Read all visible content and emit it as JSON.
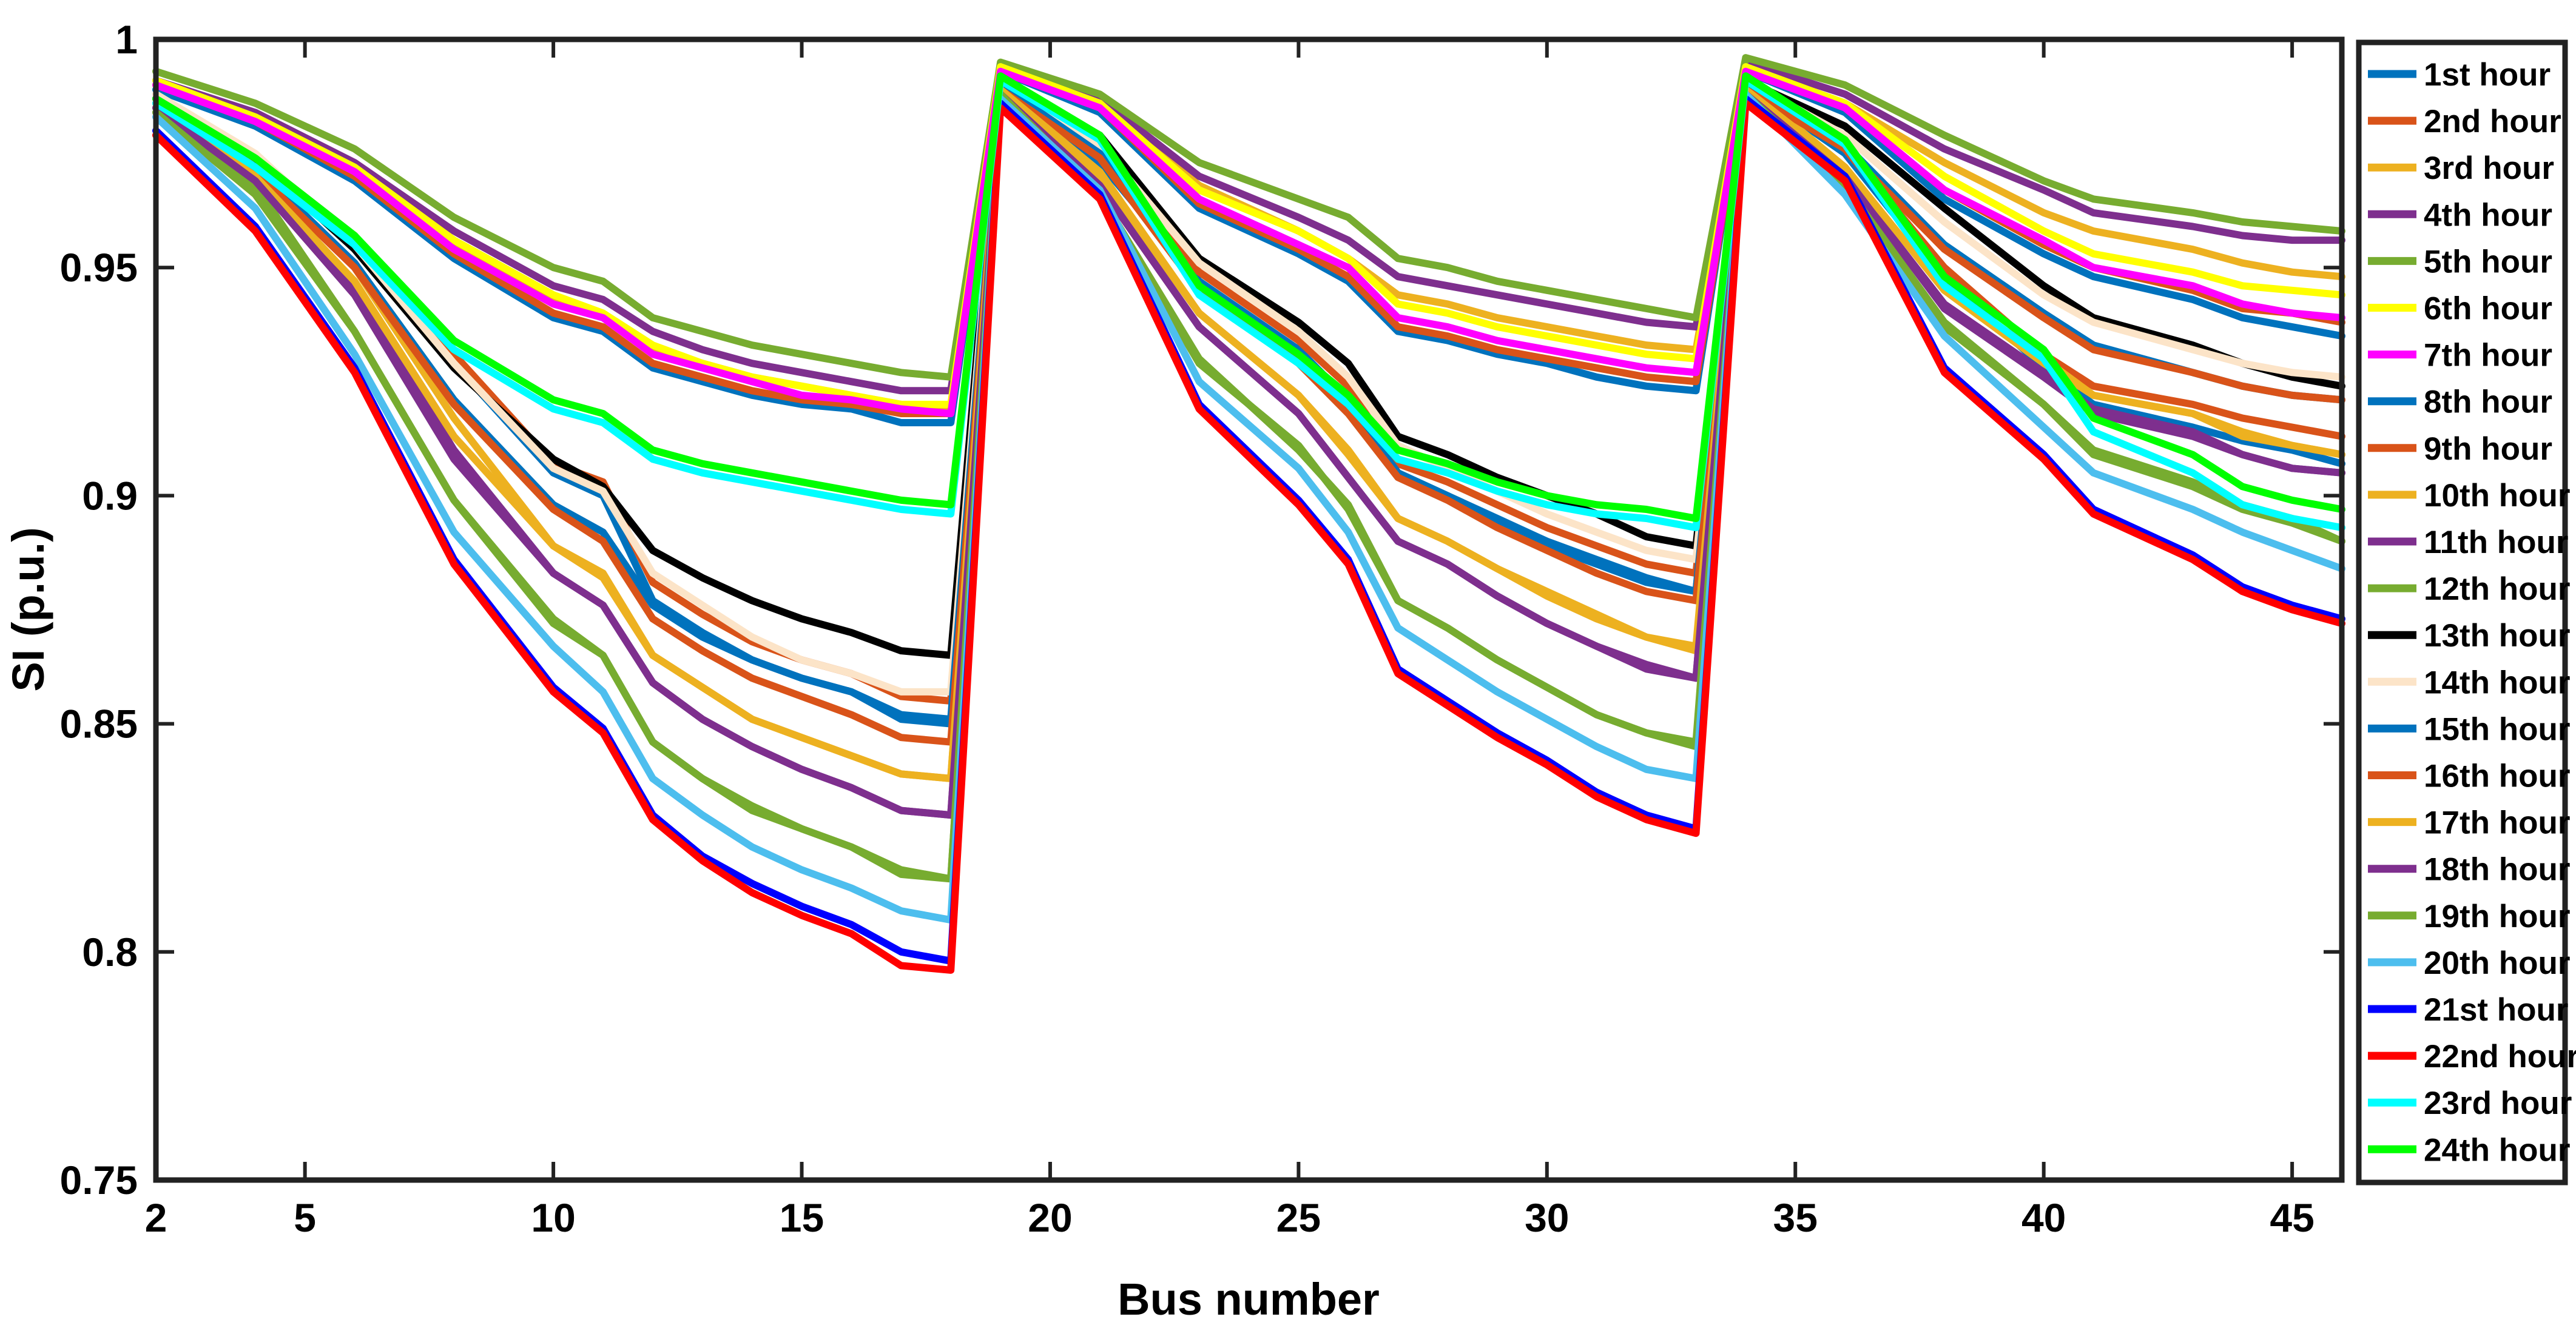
{
  "chart_data": {
    "type": "line",
    "title": "",
    "xlabel": "Bus number",
    "ylabel": "SI (p.u.)",
    "xlim": [
      2,
      46
    ],
    "ylim": [
      0.75,
      1.0
    ],
    "xticks": [
      2,
      5,
      10,
      15,
      20,
      25,
      30,
      35,
      40,
      45
    ],
    "xtick_labels": [
      "2",
      "5",
      "10",
      "15",
      "20",
      "25",
      "30",
      "35",
      "40",
      "45"
    ],
    "yticks": [
      0.75,
      0.8,
      0.85,
      0.9,
      0.95,
      1.0
    ],
    "ytick_labels": [
      "0.75",
      "0.8",
      "0.85",
      "0.9",
      "0.95",
      "1"
    ],
    "grid": false,
    "legend_position": "right",
    "x": [
      2,
      4,
      6,
      8,
      10,
      11,
      12,
      13,
      14,
      15,
      16,
      17,
      18,
      19,
      21,
      23,
      25,
      26,
      27,
      28,
      29,
      30,
      31,
      32,
      33,
      34,
      36,
      38,
      40,
      41,
      43,
      44,
      45,
      46
    ],
    "series": [
      {
        "name": "1st hour",
        "color": "#0072BD",
        "values": [
          0.989,
          0.981,
          0.969,
          0.952,
          0.939,
          0.936,
          0.928,
          0.925,
          0.922,
          0.92,
          0.919,
          0.916,
          0.916,
          0.993,
          0.984,
          0.963,
          0.953,
          0.947,
          0.936,
          0.934,
          0.931,
          0.929,
          0.926,
          0.924,
          0.923,
          0.993,
          0.984,
          0.965,
          0.953,
          0.948,
          0.943,
          0.939,
          0.937,
          0.935
        ]
      },
      {
        "name": "2nd hour",
        "color": "#D95319",
        "values": [
          0.99,
          0.982,
          0.97,
          0.953,
          0.94,
          0.937,
          0.929,
          0.926,
          0.923,
          0.921,
          0.92,
          0.918,
          0.918,
          0.993,
          0.985,
          0.964,
          0.954,
          0.948,
          0.937,
          0.935,
          0.932,
          0.93,
          0.928,
          0.926,
          0.925,
          0.993,
          0.985,
          0.967,
          0.955,
          0.95,
          0.945,
          0.941,
          0.94,
          0.938
        ]
      },
      {
        "name": "3rd hour",
        "color": "#EDB120",
        "values": [
          0.99,
          0.983,
          0.971,
          0.955,
          0.943,
          0.939,
          0.932,
          0.929,
          0.926,
          0.924,
          0.922,
          0.92,
          0.919,
          0.994,
          0.986,
          0.968,
          0.958,
          0.952,
          0.944,
          0.942,
          0.939,
          0.937,
          0.935,
          0.933,
          0.932,
          0.994,
          0.986,
          0.973,
          0.962,
          0.958,
          0.954,
          0.951,
          0.949,
          0.948
        ]
      },
      {
        "name": "4th hour",
        "color": "#7E2F8E",
        "values": [
          0.991,
          0.984,
          0.973,
          0.958,
          0.946,
          0.943,
          0.936,
          0.932,
          0.929,
          0.927,
          0.925,
          0.923,
          0.923,
          0.994,
          0.987,
          0.97,
          0.961,
          0.956,
          0.948,
          0.946,
          0.944,
          0.942,
          0.94,
          0.938,
          0.937,
          0.995,
          0.988,
          0.976,
          0.967,
          0.962,
          0.959,
          0.957,
          0.956,
          0.956
        ]
      },
      {
        "name": "5th hour",
        "color": "#77AC30",
        "values": [
          0.993,
          0.986,
          0.976,
          0.961,
          0.95,
          0.947,
          0.939,
          0.936,
          0.933,
          0.931,
          0.929,
          0.927,
          0.926,
          0.995,
          0.988,
          0.973,
          0.965,
          0.961,
          0.952,
          0.95,
          0.947,
          0.945,
          0.943,
          0.941,
          0.939,
          0.996,
          0.99,
          0.979,
          0.969,
          0.965,
          0.962,
          0.96,
          0.959,
          0.958
        ]
      },
      {
        "name": "6th hour",
        "color": "#FFFF00",
        "values": [
          0.991,
          0.983,
          0.972,
          0.956,
          0.944,
          0.94,
          0.933,
          0.929,
          0.926,
          0.924,
          0.922,
          0.92,
          0.92,
          0.994,
          0.986,
          0.967,
          0.958,
          0.952,
          0.942,
          0.94,
          0.937,
          0.935,
          0.933,
          0.931,
          0.93,
          0.994,
          0.986,
          0.97,
          0.958,
          0.953,
          0.949,
          0.946,
          0.945,
          0.944
        ]
      },
      {
        "name": "7th hour",
        "color": "#FF00FF",
        "values": [
          0.99,
          0.982,
          0.971,
          0.954,
          0.942,
          0.939,
          0.931,
          0.928,
          0.925,
          0.922,
          0.921,
          0.919,
          0.918,
          0.993,
          0.985,
          0.965,
          0.955,
          0.95,
          0.939,
          0.937,
          0.934,
          0.932,
          0.93,
          0.928,
          0.927,
          0.993,
          0.985,
          0.967,
          0.956,
          0.95,
          0.946,
          0.942,
          0.94,
          0.939
        ]
      },
      {
        "name": "8th hour",
        "color": "#0072BD",
        "values": [
          0.987,
          0.973,
          0.956,
          0.929,
          0.905,
          0.9,
          0.877,
          0.87,
          0.864,
          0.86,
          0.857,
          0.851,
          0.85,
          0.99,
          0.973,
          0.947,
          0.932,
          0.921,
          0.905,
          0.9,
          0.895,
          0.89,
          0.886,
          0.882,
          0.879,
          0.99,
          0.975,
          0.948,
          0.928,
          0.92,
          0.915,
          0.912,
          0.91,
          0.907
        ]
      },
      {
        "name": "9th hour",
        "color": "#D95319",
        "values": [
          0.987,
          0.974,
          0.957,
          0.931,
          0.907,
          0.903,
          0.881,
          0.874,
          0.868,
          0.864,
          0.861,
          0.856,
          0.855,
          0.99,
          0.974,
          0.949,
          0.934,
          0.924,
          0.907,
          0.903,
          0.898,
          0.893,
          0.889,
          0.885,
          0.883,
          0.99,
          0.976,
          0.95,
          0.931,
          0.924,
          0.92,
          0.917,
          0.915,
          0.913
        ]
      },
      {
        "name": "10th hour",
        "color": "#EDB120",
        "values": [
          0.987,
          0.972,
          0.95,
          0.917,
          0.889,
          0.882,
          0.865,
          0.858,
          0.851,
          0.847,
          0.843,
          0.839,
          0.838,
          0.989,
          0.97,
          0.94,
          0.922,
          0.909,
          0.895,
          0.89,
          0.884,
          0.878,
          0.873,
          0.869,
          0.866,
          0.99,
          0.972,
          0.945,
          0.93,
          0.922,
          0.918,
          0.913,
          0.911,
          0.909
        ]
      },
      {
        "name": "11th hour",
        "color": "#7E2F8E",
        "values": [
          0.985,
          0.97,
          0.946,
          0.91,
          0.883,
          0.876,
          0.859,
          0.851,
          0.845,
          0.84,
          0.836,
          0.831,
          0.83,
          0.988,
          0.968,
          0.937,
          0.918,
          0.904,
          0.89,
          0.885,
          0.878,
          0.872,
          0.867,
          0.862,
          0.86,
          0.989,
          0.97,
          0.942,
          0.927,
          0.919,
          0.914,
          0.909,
          0.906,
          0.905
        ]
      },
      {
        "name": "12th hour",
        "color": "#77AC30",
        "values": [
          0.984,
          0.968,
          0.936,
          0.899,
          0.872,
          0.865,
          0.846,
          0.838,
          0.831,
          0.827,
          0.823,
          0.817,
          0.816,
          0.988,
          0.966,
          0.929,
          0.911,
          0.897,
          0.877,
          0.871,
          0.864,
          0.858,
          0.852,
          0.848,
          0.845,
          0.989,
          0.968,
          0.937,
          0.92,
          0.909,
          0.902,
          0.897,
          0.894,
          0.89
        ]
      },
      {
        "name": "13th hour",
        "color": "#000000",
        "values": [
          0.987,
          0.974,
          0.954,
          0.928,
          0.908,
          0.902,
          0.888,
          0.882,
          0.877,
          0.873,
          0.87,
          0.866,
          0.865,
          0.991,
          0.979,
          0.952,
          0.938,
          0.929,
          0.913,
          0.909,
          0.904,
          0.9,
          0.896,
          0.891,
          0.889,
          0.991,
          0.981,
          0.963,
          0.946,
          0.939,
          0.933,
          0.929,
          0.926,
          0.924
        ]
      },
      {
        "name": "14th hour",
        "color": "#FCE4C8",
        "values": [
          0.988,
          0.975,
          0.955,
          0.929,
          0.906,
          0.901,
          0.883,
          0.876,
          0.869,
          0.864,
          0.861,
          0.857,
          0.857,
          0.991,
          0.977,
          0.951,
          0.936,
          0.926,
          0.911,
          0.906,
          0.901,
          0.896,
          0.892,
          0.888,
          0.886,
          0.991,
          0.979,
          0.96,
          0.944,
          0.938,
          0.932,
          0.929,
          0.927,
          0.926
        ]
      },
      {
        "name": "15th hour",
        "color": "#0072BD",
        "values": [
          0.986,
          0.972,
          0.951,
          0.921,
          0.898,
          0.892,
          0.876,
          0.869,
          0.864,
          0.86,
          0.857,
          0.852,
          0.851,
          0.99,
          0.975,
          0.946,
          0.93,
          0.92,
          0.905,
          0.9,
          0.894,
          0.889,
          0.885,
          0.881,
          0.879,
          0.99,
          0.977,
          0.955,
          0.94,
          0.933,
          0.927,
          0.924,
          0.922,
          0.921
        ]
      },
      {
        "name": "16th hour",
        "color": "#D95319",
        "values": [
          0.986,
          0.971,
          0.95,
          0.92,
          0.897,
          0.89,
          0.873,
          0.866,
          0.86,
          0.856,
          0.852,
          0.847,
          0.846,
          0.989,
          0.974,
          0.945,
          0.929,
          0.918,
          0.904,
          0.899,
          0.893,
          0.888,
          0.883,
          0.879,
          0.877,
          0.989,
          0.976,
          0.954,
          0.939,
          0.932,
          0.927,
          0.924,
          0.922,
          0.921
        ]
      },
      {
        "name": "17th hour",
        "color": "#EDB120",
        "values": [
          0.985,
          0.97,
          0.947,
          0.913,
          0.889,
          0.883,
          0.865,
          0.858,
          0.851,
          0.847,
          0.843,
          0.839,
          0.838,
          0.989,
          0.971,
          0.94,
          0.922,
          0.91,
          0.895,
          0.89,
          0.884,
          0.879,
          0.874,
          0.869,
          0.867,
          0.989,
          0.972,
          0.945,
          0.929,
          0.922,
          0.918,
          0.914,
          0.911,
          0.909
        ]
      },
      {
        "name": "18th hour",
        "color": "#7E2F8E",
        "values": [
          0.985,
          0.969,
          0.944,
          0.908,
          0.883,
          0.876,
          0.859,
          0.851,
          0.845,
          0.84,
          0.836,
          0.831,
          0.83,
          0.988,
          0.968,
          0.937,
          0.918,
          0.904,
          0.89,
          0.885,
          0.878,
          0.872,
          0.867,
          0.863,
          0.86,
          0.988,
          0.97,
          0.941,
          0.926,
          0.918,
          0.913,
          0.909,
          0.906,
          0.905
        ]
      },
      {
        "name": "19th hour",
        "color": "#77AC30",
        "values": [
          0.984,
          0.966,
          0.936,
          0.899,
          0.873,
          0.865,
          0.846,
          0.838,
          0.832,
          0.827,
          0.823,
          0.818,
          0.816,
          0.988,
          0.966,
          0.93,
          0.91,
          0.898,
          0.877,
          0.871,
          0.864,
          0.858,
          0.852,
          0.848,
          0.846,
          0.988,
          0.968,
          0.938,
          0.92,
          0.91,
          0.903,
          0.898,
          0.895,
          0.89
        ]
      },
      {
        "name": "20th hour",
        "color": "#4DBEEE",
        "values": [
          0.983,
          0.963,
          0.931,
          0.892,
          0.867,
          0.857,
          0.838,
          0.83,
          0.823,
          0.818,
          0.814,
          0.809,
          0.807,
          0.987,
          0.967,
          0.925,
          0.906,
          0.892,
          0.871,
          0.864,
          0.857,
          0.851,
          0.845,
          0.84,
          0.838,
          0.988,
          0.966,
          0.935,
          0.915,
          0.905,
          0.897,
          0.892,
          0.888,
          0.884
        ]
      },
      {
        "name": "21st hour",
        "color": "#0000FF",
        "values": [
          0.98,
          0.959,
          0.928,
          0.886,
          0.858,
          0.849,
          0.83,
          0.821,
          0.815,
          0.81,
          0.806,
          0.8,
          0.798,
          0.986,
          0.966,
          0.92,
          0.899,
          0.886,
          0.862,
          0.855,
          0.848,
          0.842,
          0.835,
          0.83,
          0.827,
          0.987,
          0.97,
          0.928,
          0.909,
          0.897,
          0.887,
          0.88,
          0.876,
          0.873
        ]
      },
      {
        "name": "22nd hour",
        "color": "#FF0000",
        "values": [
          0.979,
          0.958,
          0.927,
          0.885,
          0.857,
          0.848,
          0.829,
          0.82,
          0.813,
          0.808,
          0.804,
          0.797,
          0.796,
          0.985,
          0.965,
          0.919,
          0.898,
          0.885,
          0.861,
          0.854,
          0.847,
          0.841,
          0.834,
          0.829,
          0.826,
          0.986,
          0.969,
          0.927,
          0.908,
          0.896,
          0.886,
          0.879,
          0.875,
          0.872
        ]
      },
      {
        "name": "23rd hour",
        "color": "#00FFFF",
        "values": [
          0.986,
          0.972,
          0.955,
          0.932,
          0.919,
          0.916,
          0.908,
          0.905,
          0.903,
          0.901,
          0.899,
          0.897,
          0.896,
          0.991,
          0.978,
          0.944,
          0.929,
          0.92,
          0.908,
          0.905,
          0.901,
          0.898,
          0.896,
          0.895,
          0.893,
          0.991,
          0.977,
          0.946,
          0.93,
          0.914,
          0.905,
          0.898,
          0.895,
          0.893
        ]
      },
      {
        "name": "24th hour",
        "color": "#00FF00",
        "values": [
          0.987,
          0.974,
          0.957,
          0.934,
          0.921,
          0.918,
          0.91,
          0.907,
          0.905,
          0.903,
          0.901,
          0.899,
          0.898,
          0.992,
          0.979,
          0.946,
          0.931,
          0.922,
          0.91,
          0.907,
          0.903,
          0.9,
          0.898,
          0.897,
          0.895,
          0.992,
          0.978,
          0.948,
          0.932,
          0.917,
          0.909,
          0.902,
          0.899,
          0.897
        ]
      }
    ]
  }
}
